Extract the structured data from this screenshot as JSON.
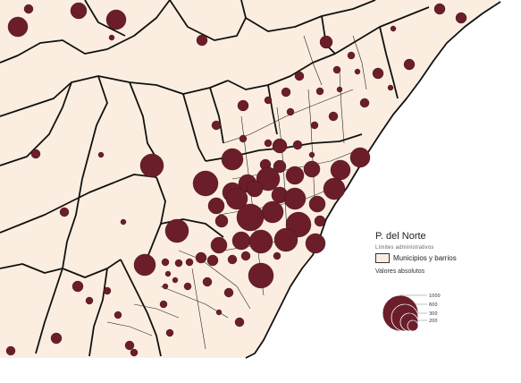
{
  "colors": {
    "land": "#fbeee0",
    "sea": "#ffffff",
    "boundary": "#111111",
    "symbol": "#6b1e2a",
    "symbol_stroke": "#3a0b12"
  },
  "legend": {
    "title": "P. del Norte",
    "subtitle": "Límites administrativos",
    "swatch_label": "Municipios y barrios",
    "values_title": "Valores absolutos",
    "scale_values": [
      "1000",
      "600",
      "300",
      "200"
    ]
  },
  "symbols_note": "proportional circles per neighbourhood",
  "symbols": [
    {
      "r": 9
    },
    {
      "r": 12
    },
    {
      "r": 8
    },
    {
      "r": 6
    },
    {
      "r": 13
    },
    {
      "r": 10
    },
    {
      "r": 11
    },
    {
      "r": 14
    },
    {
      "r": 12
    },
    {
      "r": 9
    },
    {
      "r": 15
    },
    {
      "r": 13
    },
    {
      "r": 10
    },
    {
      "r": 8
    }
  ]
}
